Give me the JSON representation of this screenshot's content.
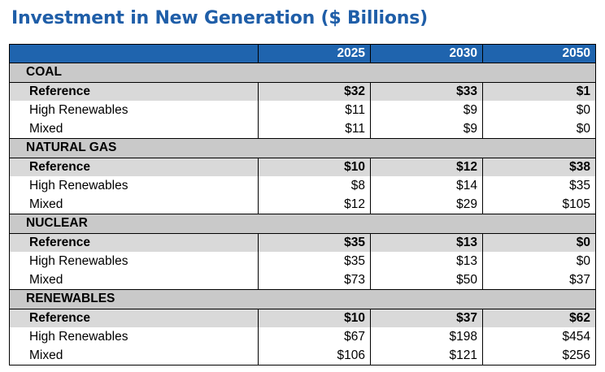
{
  "title": "Investment in New Generation ($ Billions)",
  "columns": [
    "2025",
    "2030",
    "2050"
  ],
  "colors": {
    "title": "#1f5ea8",
    "header": "#1f64ae",
    "category": "#c9c9c9",
    "reference": "#d9d9d9"
  },
  "sections": [
    {
      "name": "COAL",
      "rows": [
        {
          "label": "Reference",
          "values": [
            "$32",
            "$33",
            "$1"
          ]
        },
        {
          "label": "High Renewables",
          "values": [
            "$11",
            "$9",
            "$0"
          ]
        },
        {
          "label": "Mixed",
          "values": [
            "$11",
            "$9",
            "$0"
          ]
        }
      ]
    },
    {
      "name": "NATURAL GAS",
      "rows": [
        {
          "label": "Reference",
          "values": [
            "$10",
            "$12",
            "$38"
          ]
        },
        {
          "label": "High Renewables",
          "values": [
            "$8",
            "$14",
            "$35"
          ]
        },
        {
          "label": "Mixed",
          "values": [
            "$12",
            "$29",
            "$105"
          ]
        }
      ]
    },
    {
      "name": "NUCLEAR",
      "rows": [
        {
          "label": "Reference",
          "values": [
            "$35",
            "$13",
            "$0"
          ]
        },
        {
          "label": "High Renewables",
          "values": [
            "$35",
            "$13",
            "$0"
          ]
        },
        {
          "label": "Mixed",
          "values": [
            "$73",
            "$50",
            "$37"
          ]
        }
      ]
    },
    {
      "name": "RENEWABLES",
      "rows": [
        {
          "label": "Reference",
          "values": [
            "$10",
            "$37",
            "$62"
          ]
        },
        {
          "label": "High Renewables",
          "values": [
            "$67",
            "$198",
            "$454"
          ]
        },
        {
          "label": "Mixed",
          "values": [
            "$106",
            "$121",
            "$256"
          ]
        }
      ]
    }
  ]
}
